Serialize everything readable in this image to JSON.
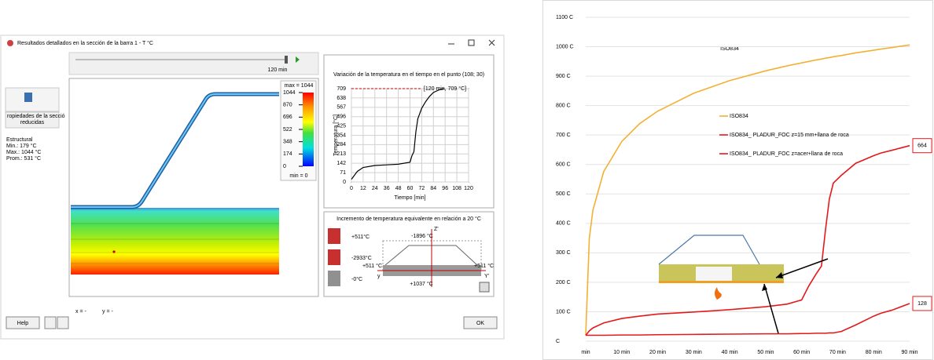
{
  "dialog": {
    "title": "Resultados detallados en la sección de la barra 1 - T °C",
    "slider_label": "120 min",
    "colorbar": {
      "max_label": "max = 1044",
      "min_label": "min = 0",
      "ticks": [
        1044,
        870,
        696,
        522,
        348,
        174,
        0
      ]
    },
    "side_panel": {
      "button": [
        "ropiedades de la secció",
        "reducidas"
      ],
      "info": [
        "Estructural",
        "Min.: 179 °C",
        "Max.: 1044 °C",
        "Prom.: 531 °C"
      ]
    },
    "section_panel": {
      "title": "Incremento de temperatura equivalente en relación a 20 °C",
      "icons": [
        "+511°C",
        "-2933°C",
        "-0°C"
      ],
      "labels": [
        "-1896 °C",
        "Z'",
        "+511 °C",
        "+511 °C",
        "y",
        "Y'",
        "+1037 °C"
      ]
    },
    "coords": [
      "x = -",
      "y = -"
    ],
    "buttons": [
      "Help",
      "OK"
    ]
  },
  "chart_data": [
    {
      "type": "line",
      "title": "Variación de la temperatura en el tiempo en el punto (108; 30)",
      "xlabel": "Tiempo [min]",
      "ylabel": "Temperatura [°C]",
      "x": [
        0,
        6,
        12,
        24,
        36,
        48,
        60,
        62,
        64,
        66,
        68,
        72,
        76,
        80,
        84,
        90,
        95
      ],
      "series": [
        {
          "color": "#000000",
          "values": [
            20,
            80,
            110,
            125,
            130,
            135,
            150,
            200,
            230,
            380,
            480,
            560,
            610,
            650,
            680,
            700,
            709
          ]
        }
      ],
      "xlim": [
        0,
        120
      ],
      "ylim": [
        0,
        709
      ],
      "xticks": [
        0,
        12,
        24,
        36,
        48,
        60,
        72,
        84,
        96,
        108,
        120
      ],
      "yticks": [
        0,
        71,
        142,
        213,
        284,
        354,
        425,
        496,
        567,
        638,
        709
      ],
      "grid": true,
      "annotations": [
        {
          "text": "[120 min, 709 °C]"
        }
      ]
    },
    {
      "type": "line",
      "title": "ISO834",
      "x": [
        0,
        1,
        2,
        5,
        10,
        15,
        20,
        30,
        40,
        50,
        56,
        60,
        62,
        64,
        65.5,
        66.6,
        67.7,
        68.8,
        71,
        75,
        80,
        82,
        85,
        90
      ],
      "series": [
        {
          "name": "ISO834",
          "color": "#f2b134",
          "values": [
            20,
            349,
            445,
            576,
            678,
            739,
            781,
            842,
            885,
            918,
            935,
            945,
            950,
            955,
            958,
            961,
            963,
            966,
            970,
            979,
            988,
            992,
            997,
            1006
          ]
        },
        {
          "name": "ISO834_ PLADUR_FOC z=15 mm+llana de roca",
          "color": "#e31a1c",
          "values": [
            20,
            35,
            45,
            62,
            77,
            85,
            92,
            99,
            107,
            117,
            126,
            140,
            188,
            228,
            255,
            376,
            483,
            537,
            563,
            604,
            630,
            639,
            648,
            664
          ]
        },
        {
          "name": "ISO834_ PLADUR_FOC z=acer+llana de roca",
          "color": "#e31a1c",
          "values": [
            20,
            20,
            20,
            20,
            21,
            21,
            22,
            23,
            24,
            25,
            25,
            26,
            26,
            27,
            27,
            27,
            28,
            28,
            33,
            55,
            85,
            95,
            105,
            128
          ]
        }
      ],
      "xlim": [
        0,
        90
      ],
      "ylim": [
        0,
        1100
      ],
      "xticks": [
        {
          "value": 0,
          "label": "min"
        },
        {
          "value": 10,
          "label": "10 min"
        },
        {
          "value": 20,
          "label": "20 min"
        },
        {
          "value": 30,
          "label": "30 min"
        },
        {
          "value": 40,
          "label": "40 min"
        },
        {
          "value": 50,
          "label": "50 min"
        },
        {
          "value": 60,
          "label": "60 min"
        },
        {
          "value": 70,
          "label": "70 min"
        },
        {
          "value": 80,
          "label": "80 min"
        },
        {
          "value": 90,
          "label": "90 min"
        }
      ],
      "yticks": [
        {
          "value": 0,
          "label": "C"
        },
        {
          "value": 100,
          "label": "100 C"
        },
        {
          "value": 200,
          "label": "200 C"
        },
        {
          "value": 300,
          "label": "300 C"
        },
        {
          "value": 400,
          "label": "400 C"
        },
        {
          "value": 500,
          "label": "500 C"
        },
        {
          "value": 600,
          "label": "600 C"
        },
        {
          "value": 700,
          "label": "700 C"
        },
        {
          "value": 800,
          "label": "800 C"
        },
        {
          "value": 900,
          "label": "900 C"
        },
        {
          "value": 1000,
          "label": "1000 C"
        },
        {
          "value": 1100,
          "label": "1100 C"
        }
      ],
      "grid": true,
      "legend": "center",
      "annotations": [
        {
          "text": "664"
        },
        {
          "text": "128"
        }
      ]
    }
  ]
}
